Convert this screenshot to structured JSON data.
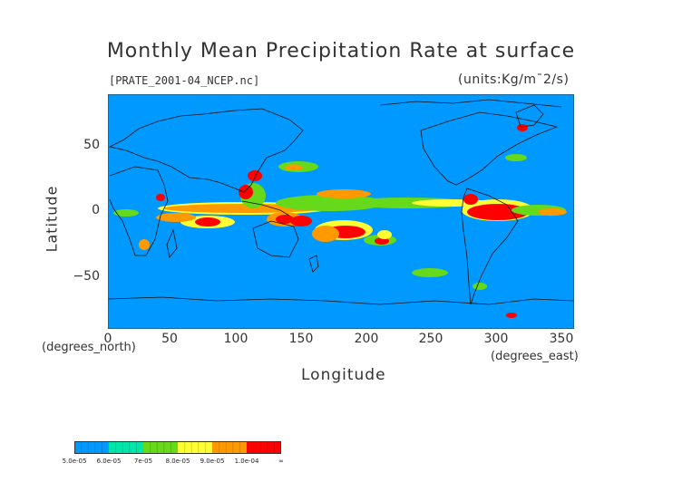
{
  "title": "Monthly Mean Precipitation Rate at surface",
  "file_label": "[PRATE_2001-04_NCEP.nc]",
  "units_label": "(units:Kg/m¯2/s)",
  "y_axis": {
    "label": "Latitude",
    "unit": "(degrees_north)",
    "ticks": [
      "50",
      "0",
      "−50"
    ]
  },
  "x_axis": {
    "label": "Longitude",
    "unit": "(degrees_east)",
    "ticks": [
      "0",
      "50",
      "100",
      "150",
      "200",
      "250",
      "300",
      "350"
    ]
  },
  "colorbar": {
    "labels": [
      "5.0e-05",
      "6.0e-05",
      "7e-05",
      "8.0e-05",
      "9.0e-05",
      "1.0e-04",
      "∞"
    ],
    "colors": [
      "#0099ff",
      "#00e5a8",
      "#66d91a",
      "#ffff33",
      "#ff9900",
      "#ff0000"
    ]
  },
  "palette": {
    "ocean": "#0099ff",
    "coastline": "#111111"
  }
}
